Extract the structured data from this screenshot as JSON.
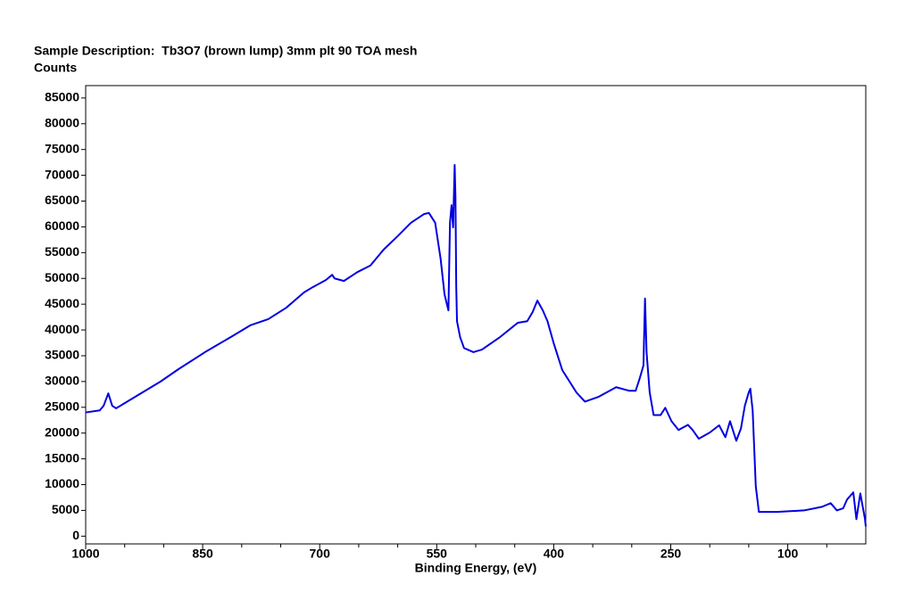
{
  "chart_data": {
    "type": "line",
    "title": "Sample Description:  Tb3O7 (brown lump) 3mm plt 90 TOA mesh",
    "y_label": "Counts",
    "x_label": "Binding Energy, (eV)",
    "xlim": [
      1000,
      0
    ],
    "ylim": [
      -1500,
      87400
    ],
    "xticks": [
      1000,
      850,
      700,
      550,
      400,
      250,
      100
    ],
    "xminorticks": [
      950,
      900,
      800,
      750,
      650,
      600,
      500,
      450,
      350,
      300,
      200,
      150,
      50
    ],
    "yticks": [
      0,
      5000,
      10000,
      15000,
      20000,
      25000,
      30000,
      35000,
      40000,
      45000,
      50000,
      55000,
      60000,
      65000,
      70000,
      75000,
      80000,
      85000
    ],
    "x": [
      1000,
      982,
      977,
      971,
      966,
      961,
      950,
      927,
      904,
      881,
      847,
      812,
      789,
      766,
      743,
      720,
      709,
      692,
      684,
      681,
      669,
      652,
      635,
      618,
      600,
      583,
      566,
      560,
      552,
      545,
      540,
      535,
      533,
      531,
      529,
      527,
      526,
      525,
      524,
      520,
      515,
      503,
      492,
      469,
      446,
      434,
      427,
      421,
      414,
      408,
      400,
      389,
      371,
      360,
      343,
      320,
      303,
      295,
      290,
      285,
      283,
      281,
      277,
      272,
      263,
      257,
      249,
      240,
      228,
      222,
      214,
      200,
      188,
      180,
      174,
      166,
      160,
      155,
      150,
      148,
      145,
      141,
      137,
      114,
      79,
      56,
      45,
      37,
      29,
      24,
      16,
      12,
      7,
      1,
      0
    ],
    "series": [
      {
        "name": "Tb3O7",
        "color": "#0000e0",
        "values": [
          24000,
          24400,
          25300,
          27700,
          25300,
          24800,
          25800,
          27900,
          30000,
          32400,
          35700,
          38800,
          40900,
          42100,
          44300,
          47300,
          48300,
          49700,
          50700,
          50000,
          49500,
          51200,
          52500,
          55600,
          58200,
          60800,
          62500,
          62700,
          60800,
          53800,
          46900,
          43800,
          60800,
          64200,
          59900,
          72000,
          66000,
          48600,
          41700,
          38600,
          36500,
          35700,
          36200,
          38600,
          41400,
          41700,
          43500,
          45700,
          43800,
          41700,
          37400,
          32200,
          27900,
          26100,
          27000,
          28900,
          28200,
          28200,
          30500,
          33100,
          46100,
          35700,
          27900,
          23500,
          23500,
          24900,
          22300,
          20600,
          21600,
          20600,
          18900,
          20100,
          21500,
          19200,
          22300,
          18500,
          20900,
          25300,
          27900,
          28600,
          24400,
          9700,
          4700,
          4700,
          5000,
          5700,
          6400,
          5000,
          5400,
          7100,
          8500,
          3300,
          8300,
          3300,
          1900
        ]
      }
    ]
  }
}
